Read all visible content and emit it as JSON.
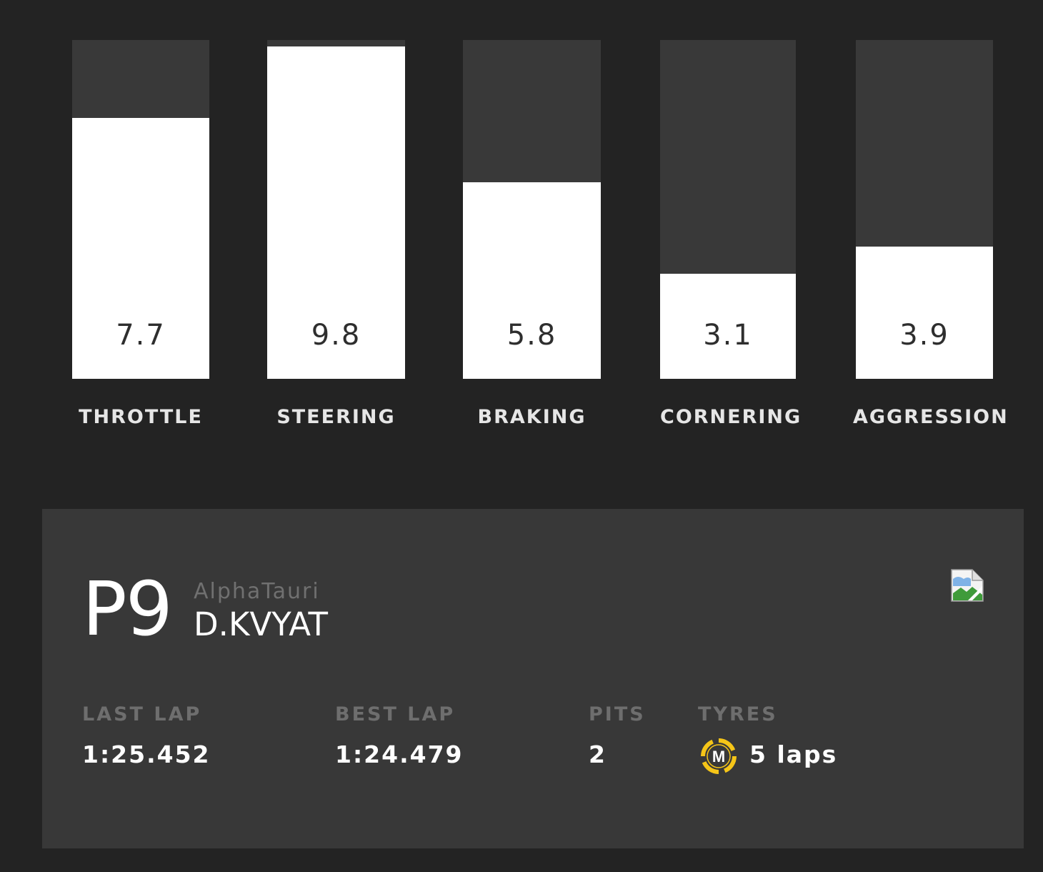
{
  "stats": {
    "max": 10,
    "items": [
      {
        "label": "THROTTLE",
        "value": "7.7",
        "level": 7.7
      },
      {
        "label": "STEERING",
        "value": "9.8",
        "level": 9.8
      },
      {
        "label": "BRAKING",
        "value": "5.8",
        "level": 5.8
      },
      {
        "label": "CORNERING",
        "value": "3.1",
        "level": 3.1
      },
      {
        "label": "AGGRESSION",
        "value": "3.9",
        "level": 3.9
      }
    ]
  },
  "driver": {
    "position": "P9",
    "team": "AlphaTauri",
    "name": "D.KVYAT",
    "team_image_icon": "broken-image-icon"
  },
  "laps": {
    "last_lap_label": "LAST LAP",
    "last_lap_value": "1:25.452",
    "best_lap_label": "BEST LAP",
    "best_lap_value": "1:24.479",
    "pits_label": "PITS",
    "pits_value": "2",
    "tyres_label": "TYRES",
    "tyre_compound": "M",
    "tyre_laps": "5 laps",
    "tyre_color": "#f5c518"
  },
  "colors": {
    "background": "#232323",
    "card": "#383838",
    "bar_track": "#393939",
    "bar_fill": "#ffffff"
  }
}
